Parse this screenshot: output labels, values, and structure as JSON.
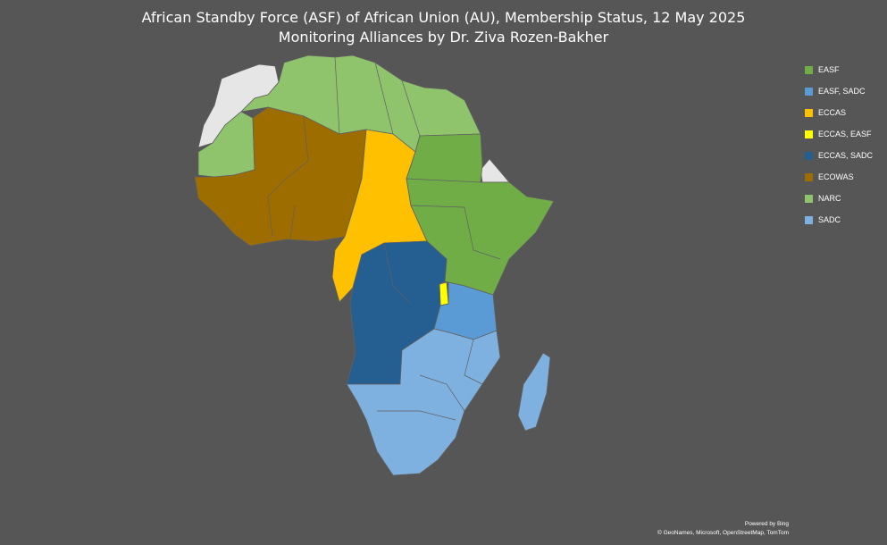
{
  "title": {
    "line1": "African Standby Force (ASF) of African Union (AU), Membership Status, 12 May 2025",
    "line2": "Monitoring Alliances by Dr. Ziva Rozen-Bakher"
  },
  "legend": [
    {
      "label": "EASF",
      "color": "#70ad47"
    },
    {
      "label": "EASF, SADC",
      "color": "#5b9bd5"
    },
    {
      "label": "ECCAS",
      "color": "#ffc000"
    },
    {
      "label": "ECCAS, EASF",
      "color": "#ffff00"
    },
    {
      "label": "ECCAS, SADC",
      "color": "#255e91"
    },
    {
      "label": "ECOWAS",
      "color": "#9e6d00"
    },
    {
      "label": "NARC",
      "color": "#8fc46d"
    },
    {
      "label": "SADC",
      "color": "#7fb1e0"
    }
  ],
  "colors": {
    "background": "#565656",
    "non_member": "#e6e6e6",
    "border": "#606060"
  },
  "credits": {
    "powered_by": "Powered by Bing",
    "sources": "© GeoNames, Microsoft, OpenStreetMap, TomTom"
  }
}
